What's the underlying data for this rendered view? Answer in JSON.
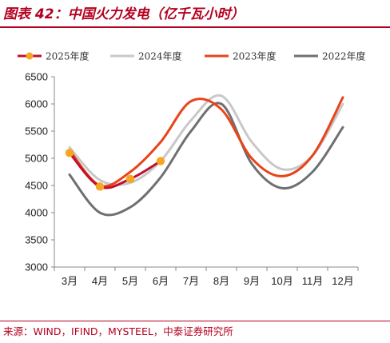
{
  "title": "图表 42：中国火力发电（亿千瓦小时）",
  "source": "来源：WIND，IFIND，MYSTEEL，中泰证券研究所",
  "chart_data": {
    "type": "line",
    "categories": [
      "3月",
      "4月",
      "5月",
      "6月",
      "7月",
      "8月",
      "9月",
      "10月",
      "11月",
      "12月"
    ],
    "ylim": [
      3000,
      6500
    ],
    "yticks": [
      "3000",
      "3500",
      "4000",
      "4500",
      "5000",
      "5500",
      "6000",
      "6500"
    ],
    "legend_position": "top",
    "series": [
      {
        "name": "2025年度",
        "color": "#c0102e",
        "marker_color": "#f5a623",
        "values": [
          5100,
          4480,
          4620,
          4950,
          null,
          null,
          null,
          null,
          null,
          null
        ]
      },
      {
        "name": "2024年度",
        "color": "#c8c8c8",
        "values": [
          5200,
          4600,
          4550,
          4950,
          5700,
          6150,
          5300,
          4800,
          5050,
          6000
        ]
      },
      {
        "name": "2023年度",
        "color": "#e8441a",
        "values": [
          5150,
          4500,
          4750,
          5300,
          6050,
          5900,
          5000,
          4670,
          5050,
          6120
        ]
      },
      {
        "name": "2022年度",
        "color": "#707070",
        "values": [
          4700,
          4000,
          4100,
          4650,
          5500,
          6000,
          4900,
          4450,
          4750,
          5570
        ]
      }
    ]
  }
}
